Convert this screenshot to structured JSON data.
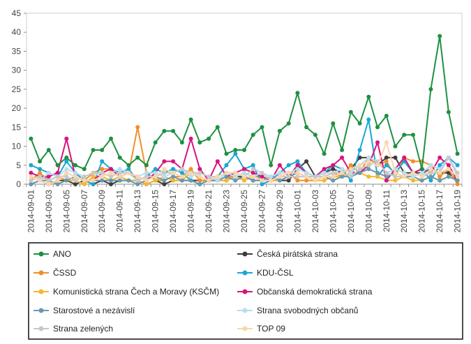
{
  "chart_data": {
    "type": "line",
    "title": "",
    "xlabel": "",
    "ylabel": "",
    "ylim": [
      0,
      45
    ],
    "yticks": [
      0,
      5,
      10,
      15,
      20,
      25,
      30,
      35,
      40,
      45
    ],
    "grid": false,
    "legend_position": "bottom",
    "x": [
      "2014-09-01",
      "2014-09-02",
      "2014-09-03",
      "2014-09-04",
      "2014-09-05",
      "2014-09-06",
      "2014-09-07",
      "2014-09-08",
      "2014-09-09",
      "2014-09-10",
      "2014-09-11",
      "2014-09-12",
      "2014-09-13",
      "2014-09-14",
      "2014-09-15",
      "2014-09-16",
      "2014-09-17",
      "2014-09-18",
      "2014-09-19",
      "2014-09-20",
      "2014-09-21",
      "2014-09-22",
      "2014-09-23",
      "2014-09-24",
      "2014-09-25",
      "2014-09-26",
      "2014-09-27",
      "2014-09-28",
      "2014-09-29",
      "2014-09-30",
      "2014-10-01",
      "2014-10-02",
      "2014-10-03",
      "2014-10-04",
      "2014-10-05",
      "2014-10-06",
      "2014-10-07",
      "2014-10-08",
      "2014-10-09",
      "2014-10-10",
      "2014-10-11",
      "2014-10-12",
      "2014-10-13",
      "2014-10-14",
      "2014-10-15",
      "2014-10-16",
      "2014-10-17",
      "2014-10-18",
      "2014-10-19"
    ],
    "x_tick_labels": [
      "2014-09-01",
      "2014-09-03",
      "2014-09-05",
      "2014-09-07",
      "2014-09-09",
      "2014-09-11",
      "2014-09-13",
      "2014-09-15",
      "2014-09-17",
      "2014-09-19",
      "2014-09-21",
      "2014-09-23",
      "2014-09-25",
      "2014-09-27",
      "2014-09-29",
      "2014-10-01",
      "2014-10-03",
      "2014-10-05",
      "2014-10-07",
      "2014-10-09",
      "2014-10-11",
      "2014-10-13",
      "2014-10-15",
      "2014-10-17",
      "2014-10-19"
    ],
    "series": [
      {
        "name": "ANO",
        "color": "#1e9041",
        "values": [
          12,
          6,
          9,
          5,
          7,
          5,
          4,
          9,
          9,
          12,
          7,
          5,
          7,
          5,
          11,
          14,
          14,
          11,
          17,
          11,
          12,
          15,
          8,
          9,
          9,
          13,
          15,
          5,
          14,
          16,
          24,
          15,
          13,
          8,
          16,
          9,
          19,
          16,
          23,
          15,
          18,
          10,
          13,
          13,
          4,
          25,
          39,
          19,
          8
        ]
      },
      {
        "name": "Česká pirátská strana",
        "color": "#3c3c3c",
        "values": [
          0,
          1,
          0,
          1,
          1,
          0,
          1,
          0,
          1,
          0,
          1,
          1,
          1,
          0,
          1,
          0,
          1,
          1,
          1,
          1,
          1,
          1,
          1,
          2,
          2,
          1,
          1,
          1,
          1,
          1,
          4,
          6,
          2,
          3,
          4,
          3,
          4,
          7,
          7,
          5,
          7,
          7,
          3,
          3,
          3,
          4,
          3,
          3,
          1
        ]
      },
      {
        "name": "ČSSD",
        "color": "#f0902a",
        "values": [
          1,
          3,
          1,
          2,
          1,
          2,
          1,
          3,
          4,
          4,
          2,
          3,
          15,
          3,
          1,
          1,
          2,
          2,
          4,
          1,
          1,
          1,
          2,
          2,
          3,
          2,
          2,
          1,
          2,
          3,
          1,
          1,
          1,
          2,
          3,
          2,
          5,
          3,
          7,
          5,
          6,
          2,
          7,
          6,
          6,
          5,
          2,
          4,
          0
        ]
      },
      {
        "name": "KDU-ČSL",
        "color": "#1aa6d6",
        "values": [
          5,
          4,
          3,
          2,
          6,
          3,
          1,
          0,
          6,
          4,
          3,
          4,
          1,
          2,
          4,
          3,
          4,
          3,
          1,
          0,
          1,
          2,
          5,
          8,
          4,
          5,
          0,
          1,
          3,
          5,
          6,
          3,
          2,
          3,
          5,
          4,
          1,
          9,
          17,
          2,
          5,
          3,
          6,
          3,
          4,
          1,
          5,
          7,
          5
        ]
      },
      {
        "name": "Komunistická strana Čech a Moravy (KSČM)",
        "color": "#f5b72e",
        "values": [
          1,
          2,
          1,
          0,
          1,
          1,
          0,
          2,
          2,
          1,
          2,
          1,
          1,
          0,
          1,
          2,
          1,
          1,
          3,
          2,
          1,
          1,
          1,
          2,
          1,
          2,
          1,
          1,
          1,
          2,
          2,
          2,
          1,
          1,
          2,
          2,
          3,
          3,
          2,
          2,
          1,
          1,
          2,
          1,
          1,
          2,
          1,
          2,
          1
        ]
      },
      {
        "name": "Občanská demokratická strana",
        "color": "#d6157e",
        "values": [
          3,
          2,
          2,
          3,
          12,
          2,
          1,
          1,
          3,
          4,
          2,
          3,
          2,
          1,
          3,
          6,
          6,
          4,
          12,
          4,
          1,
          6,
          2,
          3,
          4,
          3,
          2,
          1,
          5,
          2,
          5,
          3,
          2,
          4,
          5,
          7,
          3,
          3,
          5,
          11,
          1,
          4,
          7,
          3,
          4,
          3,
          7,
          5,
          1
        ]
      },
      {
        "name": "Starostové a nezávislí",
        "color": "#6a98b0",
        "values": [
          0,
          1,
          1,
          0,
          1,
          2,
          1,
          1,
          1,
          1,
          1,
          1,
          0,
          1,
          2,
          1,
          2,
          1,
          1,
          0,
          1,
          1,
          2,
          1,
          2,
          1,
          1,
          2,
          1,
          2,
          3,
          2,
          2,
          2,
          1,
          2,
          2,
          3,
          4,
          3,
          2,
          3,
          2,
          2,
          1,
          2,
          1,
          2,
          1
        ]
      },
      {
        "name": "Strana svobodných občanů",
        "color": "#b8ddf1",
        "values": [
          2,
          1,
          3,
          2,
          4,
          3,
          2,
          3,
          2,
          3,
          4,
          3,
          2,
          3,
          3,
          2,
          3,
          4,
          2,
          3,
          2,
          1,
          3,
          2,
          3,
          2,
          3,
          2,
          3,
          3,
          4,
          3,
          2,
          3,
          3,
          4,
          3,
          5,
          7,
          6,
          3,
          4,
          3,
          2,
          3,
          5,
          4,
          7,
          2
        ]
      },
      {
        "name": "Strana zelených",
        "color": "#c8c8c8",
        "values": [
          1,
          2,
          1,
          2,
          2,
          1,
          2,
          3,
          3,
          2,
          3,
          3,
          1,
          2,
          2,
          3,
          3,
          4,
          3,
          3,
          2,
          2,
          3,
          3,
          2,
          4,
          3,
          1,
          2,
          2,
          2,
          2,
          2,
          2,
          3,
          3,
          2,
          4,
          5,
          6,
          3,
          2,
          2,
          3,
          2,
          3,
          3,
          7,
          3
        ]
      },
      {
        "name": "TOP 09",
        "color": "#fbd5aa",
        "values": [
          2,
          1,
          0,
          1,
          3,
          2,
          1,
          1,
          2,
          3,
          2,
          3,
          2,
          1,
          2,
          4,
          3,
          2,
          3,
          2,
          1,
          2,
          3,
          3,
          2,
          2,
          1,
          1,
          2,
          3,
          3,
          2,
          1,
          2,
          2,
          3,
          4,
          5,
          6,
          5,
          11,
          3,
          2,
          3,
          2,
          4,
          3,
          4,
          2
        ]
      }
    ]
  }
}
